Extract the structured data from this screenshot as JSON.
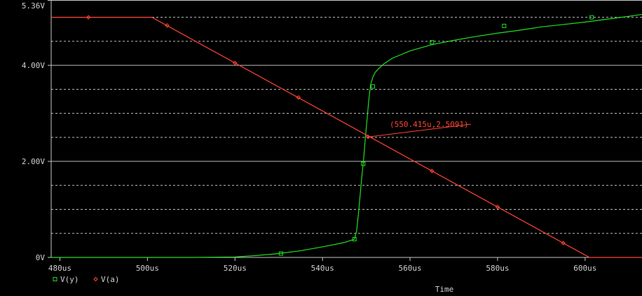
{
  "chart_data": {
    "type": "line",
    "xlabel": "Time",
    "x_unit": "us",
    "xlim": [
      478,
      613
    ],
    "ylim": [
      0,
      5.36
    ],
    "x_ticks": [
      {
        "value": 480,
        "label": "480us"
      },
      {
        "value": 500,
        "label": "500us"
      },
      {
        "value": 520,
        "label": "520us"
      },
      {
        "value": 540,
        "label": "540us"
      },
      {
        "value": 560,
        "label": "560us"
      },
      {
        "value": 580,
        "label": "580us"
      },
      {
        "value": 600,
        "label": "600us"
      }
    ],
    "y_ticks": [
      {
        "value": 0,
        "label": "0V"
      },
      {
        "value": 2.0,
        "label": "2.00V"
      },
      {
        "value": 4.0,
        "label": "4.00V"
      },
      {
        "value": 5.36,
        "label": "5.36V"
      }
    ],
    "y_gridlines_solid": [
      2.0,
      4.0
    ],
    "y_gridlines_dashed": [
      0.5,
      1.0,
      1.5,
      2.5,
      3.0,
      3.5,
      4.5,
      5.0
    ],
    "grid": true,
    "legend_position": "bottom-left",
    "series": [
      {
        "name": "V(y)",
        "color": "#22dd22",
        "marker": "square",
        "x": [
          478,
          500,
          510,
          520,
          525,
          530,
          535,
          540,
          545,
          547.3,
          547.8,
          548.2,
          548.6,
          549.0,
          549.4,
          549.8,
          550.2,
          550.6,
          551.0,
          551.5,
          552.0,
          552.8,
          554,
          556,
          560,
          565,
          570,
          575,
          580,
          585,
          590,
          595,
          600,
          605,
          610,
          613
        ],
        "y": [
          0,
          0,
          0,
          0.01,
          0.04,
          0.08,
          0.14,
          0.22,
          0.31,
          0.38,
          0.55,
          0.9,
          1.3,
          1.7,
          2.05,
          2.5,
          2.9,
          3.3,
          3.6,
          3.75,
          3.85,
          3.93,
          4.03,
          4.15,
          4.3,
          4.43,
          4.52,
          4.6,
          4.67,
          4.73,
          4.8,
          4.85,
          4.9,
          4.96,
          5.02,
          5.06
        ],
        "marker_x": [
          530.5,
          547.3,
          549.3,
          551.5,
          565,
          581.5,
          601.5
        ],
        "marker_y": [
          0.08,
          0.38,
          1.95,
          3.56,
          4.48,
          4.82,
          5.0
        ]
      },
      {
        "name": "V(a)",
        "color": "#ff4433",
        "marker": "diamond",
        "x": [
          478,
          501,
          601,
          613
        ],
        "y": [
          5.0,
          5.0,
          0,
          0
        ],
        "marker_x": [
          486.5,
          504.5,
          520,
          534.5,
          550.4,
          565,
          580,
          595
        ],
        "marker_y": [
          5.0,
          4.83,
          4.05,
          3.33,
          2.51,
          1.8,
          1.05,
          0.3
        ]
      }
    ],
    "annotations": [
      {
        "text": "(550.415u,2.5091)",
        "x": 550.415,
        "y": 2.5091,
        "color": "#ff4433"
      }
    ]
  }
}
